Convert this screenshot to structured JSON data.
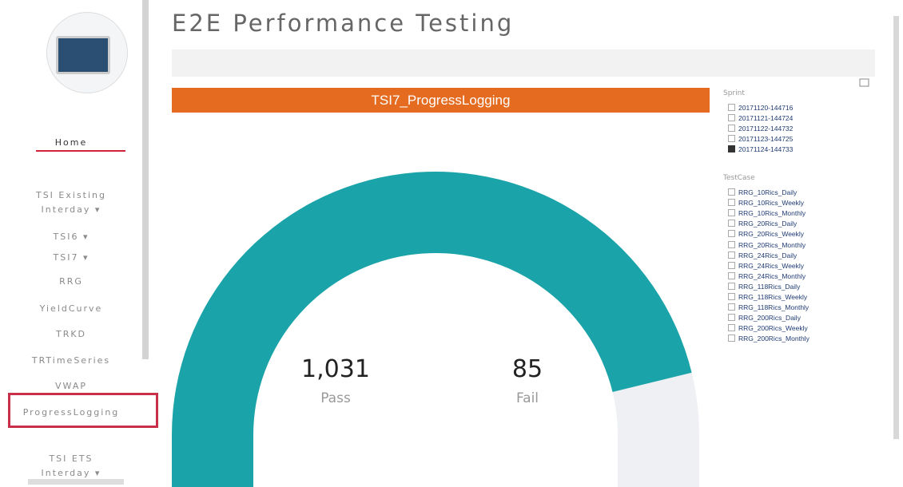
{
  "sidebar": {
    "nav": [
      "Home",
      "TSI Existing",
      "Interday ▾",
      "TSI6 ▾",
      "TSI7 ▾",
      "RRG",
      "YieldCurve",
      "TRKD",
      "TRTimeSeries",
      "VWAP",
      "ProgressLogging",
      "TSI ETS",
      "Interday ▾"
    ],
    "active": "ProgressLogging"
  },
  "header": {
    "title": "E2E Performance Testing"
  },
  "banner": {
    "title": "TSI7_ProgressLogging"
  },
  "gauge": {
    "pass": {
      "value": 1031,
      "label": "1,031",
      "name": "Pass",
      "color": "#1aa3a8"
    },
    "fail": {
      "value": 85,
      "name": "Fail",
      "color": "#eef0f3"
    }
  },
  "slicers": [
    {
      "title": "Sprint",
      "items": [
        {
          "label": "20171120-144716",
          "checked": false
        },
        {
          "label": "20171121-144724",
          "checked": false
        },
        {
          "label": "20171122-144732",
          "checked": false
        },
        {
          "label": "20171123-144725",
          "checked": false
        },
        {
          "label": "20171124-144733",
          "checked": true
        }
      ]
    },
    {
      "title": "TestCase",
      "items": [
        {
          "label": "RRG_10Rics_Daily",
          "checked": false
        },
        {
          "label": "RRG_10Rics_Weekly",
          "checked": false
        },
        {
          "label": "RRG_10Rics_Monthly",
          "checked": false
        },
        {
          "label": "RRG_20Rics_Daily",
          "checked": false
        },
        {
          "label": "RRG_20Rics_Weekly",
          "checked": false
        },
        {
          "label": "RRG_20Rics_Monthly",
          "checked": false
        },
        {
          "label": "RRG_24Rics_Daily",
          "checked": false
        },
        {
          "label": "RRG_24Rics_Weekly",
          "checked": false
        },
        {
          "label": "RRG_24Rics_Monthly",
          "checked": false
        },
        {
          "label": "RRG_118Rics_Daily",
          "checked": false
        },
        {
          "label": "RRG_118Rics_Weekly",
          "checked": false
        },
        {
          "label": "RRG_118Rics_Monthly",
          "checked": false
        },
        {
          "label": "RRG_200Rics_Daily",
          "checked": false
        },
        {
          "label": "RRG_200Rics_Weekly",
          "checked": false
        },
        {
          "label": "RRG_200Rics_Monthly",
          "checked": false
        }
      ]
    }
  ]
}
